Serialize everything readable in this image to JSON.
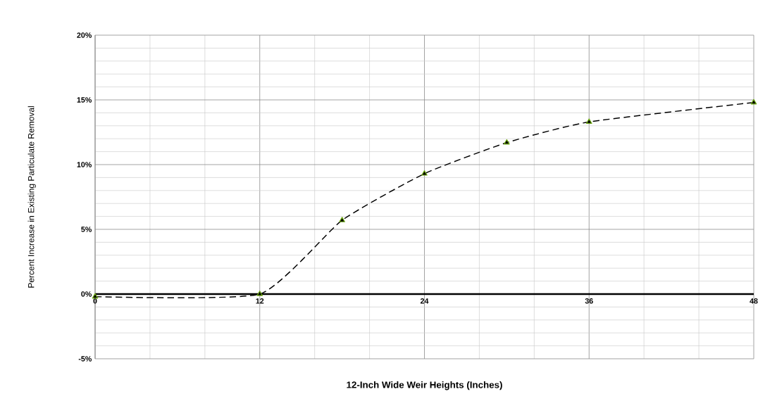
{
  "chart_data": {
    "type": "line",
    "xlabel": "12-Inch Wide Weir Heights (Inches)",
    "ylabel": "Percent Increase in Existing Particulate Removal",
    "x": [
      0,
      12,
      18,
      24,
      30,
      36,
      48
    ],
    "series": [
      {
        "color": "#000000",
        "values": [
          -0.2,
          0,
          5.7,
          9.3,
          11.7,
          13.3,
          14.8
        ]
      }
    ],
    "xlim": [
      0,
      48
    ],
    "xticks": [
      0,
      12,
      24,
      36,
      48
    ],
    "ylim": [
      -5,
      20
    ],
    "yticks": [
      {
        "value": -5,
        "label": "-5%"
      },
      {
        "value": 0,
        "label": "0%"
      },
      {
        "value": 5,
        "label": "5%"
      },
      {
        "value": 10,
        "label": "10%"
      },
      {
        "value": 15,
        "label": "15%"
      },
      {
        "value": 20,
        "label": "20%"
      }
    ],
    "grid": true,
    "marker": "triangle",
    "line_style": "dashed"
  }
}
